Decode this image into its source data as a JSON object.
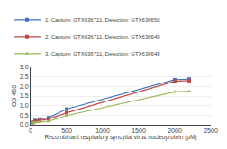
{
  "chart_data": {
    "type": "line",
    "x_label": "Recombinant respiratory syncytial virus nucleoprotein (pM)",
    "y_label": "OD 450",
    "series": [
      {
        "name": "1. Capture: GTX636711, Detection: GTX636650",
        "color": "#4472C4",
        "marker": "square",
        "x": [
          0,
          31.25,
          62.5,
          125,
          250,
          500,
          2000,
          2200
        ],
        "values": [
          0.05,
          0.13,
          0.22,
          0.29,
          0.37,
          0.82,
          2.35,
          2.38
        ]
      },
      {
        "name": "2. Capture: GTX636711, Detection: GTX636649",
        "color": "#BE4B48",
        "marker": "square",
        "x": [
          0,
          31.25,
          62.5,
          125,
          250,
          500,
          2000,
          2200
        ],
        "values": [
          0.05,
          0.12,
          0.18,
          0.22,
          0.3,
          0.63,
          2.27,
          2.3
        ]
      },
      {
        "name": "3. Capture: GTX636711, Detection: GTX636648",
        "color": "#9BBB59",
        "marker": "triangle-up",
        "x": [
          0,
          31.25,
          62.5,
          125,
          250,
          500,
          2000,
          2200
        ],
        "values": [
          0.05,
          0.1,
          0.13,
          0.15,
          0.18,
          0.48,
          1.72,
          1.75
        ]
      }
    ],
    "xlim": [
      0,
      2500
    ],
    "ylim": [
      0,
      3.0
    ],
    "xticks": [
      0,
      500,
      1000,
      1500,
      2000,
      2500
    ],
    "yticks": [
      {
        "value": 0,
        "label": "0.0"
      },
      0.5,
      {
        "value": 1.0,
        "label": "1.0"
      },
      1.5,
      {
        "value": 2.0,
        "label": "2.0"
      },
      2.5,
      {
        "value": 3.0,
        "label": "3.0"
      }
    ],
    "grid": "y",
    "legend": "upper left"
  }
}
